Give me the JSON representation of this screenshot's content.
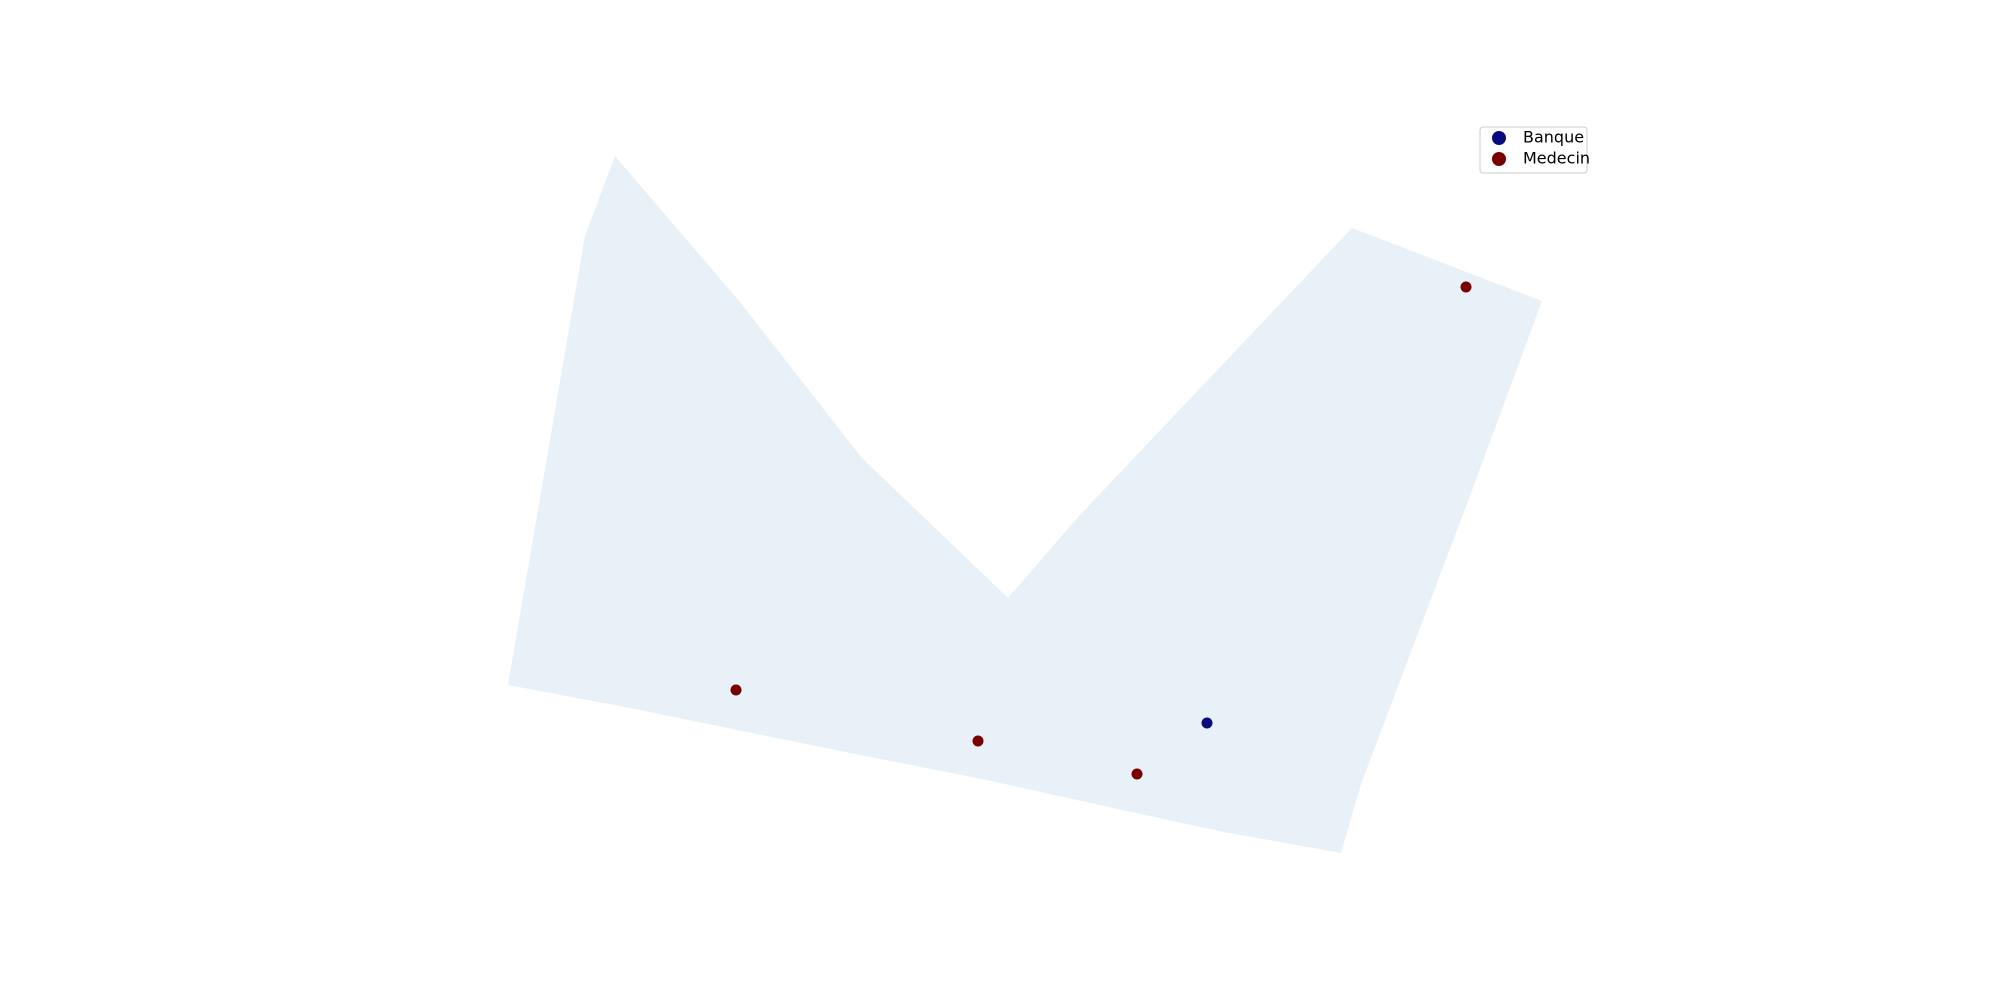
{
  "legend": {
    "entries": [
      {
        "name": "Banque",
        "color": "#0a0a80"
      },
      {
        "name": "Medecin",
        "color": "#7a0000"
      }
    ]
  }
}
